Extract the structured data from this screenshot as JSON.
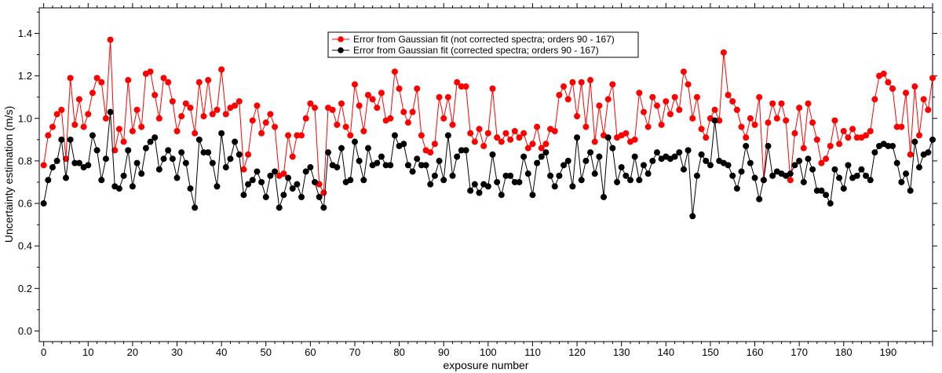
{
  "chart_data": {
    "type": "line",
    "xlabel": "exposure number",
    "ylabel": "Uncertainty estimation (m/s)",
    "xlim": [
      -1,
      200
    ],
    "ylim": [
      -0.05,
      1.52
    ],
    "x_major_ticks": [
      0,
      10,
      20,
      30,
      40,
      50,
      60,
      70,
      80,
      90,
      100,
      110,
      120,
      130,
      140,
      150,
      160,
      170,
      180,
      190
    ],
    "x_minor_step": 2,
    "y_ticks": [
      0.0,
      0.2,
      0.4,
      0.6,
      0.8,
      1.0,
      1.2,
      1.4
    ],
    "y_tick_labels": [
      "0.0",
      "0.2",
      "0.4",
      "0.6",
      "0.8",
      "1.0",
      "1.2",
      "1.4"
    ],
    "grid": false,
    "legend_position": "top-center",
    "series": [
      {
        "name": "Error from Gaussian fit (not corrected spectra; orders 90 - 167)",
        "color": "#ff0000",
        "values": [
          0.78,
          0.92,
          0.96,
          1.02,
          1.04,
          0.81,
          1.19,
          0.97,
          1.09,
          0.96,
          1.02,
          1.12,
          1.19,
          1.17,
          1.0,
          1.37,
          0.85,
          0.95,
          0.89,
          1.18,
          0.94,
          1.04,
          0.96,
          1.21,
          1.22,
          1.11,
          1.0,
          1.19,
          1.17,
          1.08,
          0.94,
          1.01,
          1.07,
          1.05,
          0.93,
          1.17,
          1.01,
          1.18,
          1.02,
          1.04,
          1.23,
          1.02,
          1.05,
          1.06,
          1.08,
          0.76,
          0.83,
          0.99,
          1.06,
          0.93,
          0.98,
          1.02,
          0.96,
          0.73,
          0.74,
          0.92,
          0.82,
          0.92,
          0.92,
          1.0,
          1.07,
          1.05,
          0.69,
          0.65,
          1.05,
          1.04,
          0.97,
          1.07,
          0.96,
          0.92,
          1.16,
          1.06,
          0.94,
          1.11,
          1.09,
          1.05,
          1.12,
          0.99,
          1.0,
          1.22,
          1.14,
          1.03,
          0.98,
          1.03,
          1.14,
          0.92,
          0.85,
          0.84,
          0.88,
          1.1,
          1.0,
          1.1,
          0.97,
          1.17,
          1.15,
          1.15,
          0.93,
          0.89,
          0.95,
          0.87,
          0.93,
          1.14,
          0.91,
          0.89,
          0.93,
          0.9,
          0.94,
          0.91,
          0.93,
          0.86,
          0.88,
          0.96,
          0.86,
          0.88,
          0.95,
          0.94,
          1.11,
          1.15,
          1.09,
          1.17,
          1.01,
          1.17,
          0.96,
          1.18,
          0.89,
          1.06,
          0.92,
          1.09,
          1.16,
          0.91,
          0.92,
          0.93,
          0.89,
          0.9,
          1.12,
          1.03,
          0.96,
          1.1,
          1.06,
          0.97,
          1.08,
          1.02,
          1.1,
          1.04,
          1.22,
          1.16,
          1.0,
          1.1,
          0.95,
          0.91,
          1.0,
          1.04,
          0.99,
          1.31,
          1.11,
          1.08,
          1.04,
          0.96,
          0.91,
          1.0,
          0.97,
          1.1,
          0.71,
          0.98,
          1.07,
          1.0,
          1.07,
          0.99,
          0.71,
          0.93,
          1.05,
          0.86,
          1.07,
          0.98,
          0.9,
          0.79,
          0.81,
          0.87,
          0.99,
          0.88,
          0.94,
          0.91,
          0.95,
          0.91,
          0.91,
          0.92,
          0.94,
          1.09,
          1.2,
          1.21,
          1.17,
          1.14,
          0.96,
          0.96,
          1.12,
          0.83,
          1.15,
          0.92,
          1.09,
          1.04,
          1.19
        ]
      },
      {
        "name": "Error from Gaussian fit (corrected spectra; orders 90 - 167)",
        "color": "#000000",
        "values": [
          0.6,
          0.71,
          0.77,
          0.8,
          0.9,
          0.72,
          0.9,
          0.79,
          0.79,
          0.77,
          0.78,
          0.92,
          0.85,
          0.71,
          0.81,
          1.03,
          0.68,
          0.67,
          0.73,
          0.85,
          0.68,
          0.79,
          0.74,
          0.86,
          0.89,
          0.91,
          0.76,
          0.81,
          0.85,
          0.81,
          0.72,
          0.84,
          0.79,
          0.67,
          0.58,
          0.9,
          0.84,
          0.84,
          0.79,
          0.68,
          0.93,
          0.77,
          0.81,
          0.89,
          0.83,
          0.64,
          0.69,
          0.71,
          0.75,
          0.7,
          0.63,
          0.73,
          0.75,
          0.58,
          0.64,
          0.72,
          0.67,
          0.69,
          0.63,
          0.75,
          0.77,
          0.7,
          0.63,
          0.58,
          0.84,
          0.78,
          0.77,
          0.86,
          0.7,
          0.71,
          0.89,
          0.8,
          0.71,
          0.86,
          0.78,
          0.79,
          0.82,
          0.78,
          0.78,
          0.92,
          0.87,
          0.88,
          0.78,
          0.75,
          0.81,
          0.78,
          0.78,
          0.69,
          0.73,
          0.8,
          0.71,
          0.92,
          0.73,
          0.82,
          0.85,
          0.85,
          0.66,
          0.69,
          0.65,
          0.69,
          0.68,
          0.83,
          0.7,
          0.64,
          0.73,
          0.73,
          0.7,
          0.7,
          0.82,
          0.74,
          0.64,
          0.79,
          0.82,
          0.84,
          0.73,
          0.68,
          0.73,
          0.78,
          0.8,
          0.68,
          0.91,
          0.71,
          0.8,
          0.84,
          0.74,
          0.82,
          0.63,
          0.91,
          0.86,
          0.7,
          0.77,
          0.73,
          0.71,
          0.82,
          0.71,
          0.78,
          0.74,
          0.8,
          0.84,
          0.81,
          0.82,
          0.81,
          0.82,
          0.84,
          0.76,
          0.85,
          0.54,
          0.73,
          0.83,
          0.8,
          0.78,
          0.99,
          0.8,
          0.79,
          0.78,
          0.73,
          0.67,
          0.75,
          0.87,
          0.79,
          0.72,
          0.62,
          0.71,
          0.87,
          0.73,
          0.75,
          0.74,
          0.73,
          0.74,
          0.78,
          0.8,
          0.7,
          0.81,
          0.76,
          0.66,
          0.66,
          0.64,
          0.6,
          0.76,
          0.72,
          0.67,
          0.78,
          0.72,
          0.73,
          0.76,
          0.73,
          0.71,
          0.84,
          0.87,
          0.88,
          0.87,
          0.87,
          0.79,
          0.7,
          0.74,
          0.66,
          0.89,
          0.77,
          0.83,
          0.84,
          0.9
        ]
      }
    ]
  }
}
